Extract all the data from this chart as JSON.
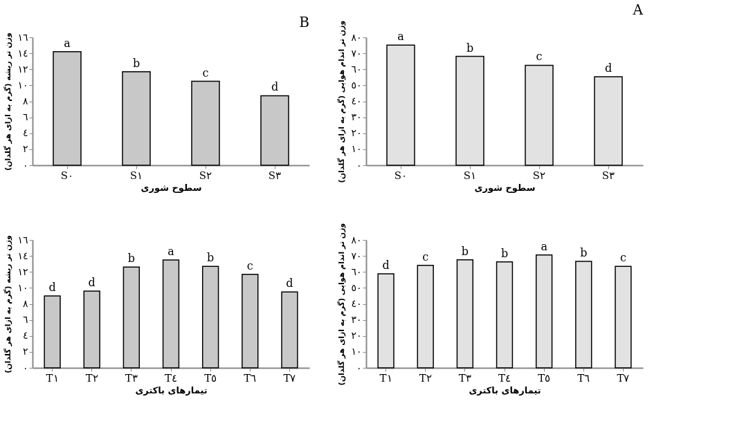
{
  "chart_data": [
    {
      "type": "bar",
      "title": "B",
      "xlabel": "سطوح شوری",
      "ylabel": "وزن تر ریشه (گرم به ازای هر گلدان)",
      "categories": [
        "S٠",
        "S١",
        "S٢",
        "S٣"
      ],
      "values": [
        14.2,
        11.7,
        10.5,
        8.7
      ],
      "value_labels": [
        "a",
        "b",
        "c",
        "d"
      ],
      "color": "#c8c8c8",
      "ylim": [
        0,
        16
      ],
      "yticks": [
        {
          "value": 0,
          "label": "٠"
        },
        {
          "value": 2,
          "label": "٢"
        },
        {
          "value": 4,
          "label": "٤"
        },
        {
          "value": 6,
          "label": "٦"
        },
        {
          "value": 8,
          "label": "٨"
        },
        {
          "value": 10,
          "label": "١٠"
        },
        {
          "value": 12,
          "label": "١٢"
        },
        {
          "value": 14,
          "label": "١٤"
        },
        {
          "value": 16,
          "label": "١٦"
        }
      ],
      "grid": false
    },
    {
      "type": "bar",
      "title": "A",
      "xlabel": "سطوح شوری",
      "ylabel": "وزن تر اندام هوایی (گرم به ازای هر گلدان)",
      "categories": [
        "S٠",
        "S١",
        "S٢",
        "S٣"
      ],
      "values": [
        75.1,
        68.1,
        62.5,
        55.3
      ],
      "value_labels": [
        "a",
        "b",
        "c",
        "d"
      ],
      "color": "#e2e2e2",
      "ylim": [
        0,
        80
      ],
      "yticks": [
        {
          "value": 0,
          "label": "٠"
        },
        {
          "value": 10,
          "label": "١٠"
        },
        {
          "value": 20,
          "label": "٢٠"
        },
        {
          "value": 30,
          "label": "٣٠"
        },
        {
          "value": 40,
          "label": "٤٠"
        },
        {
          "value": 50,
          "label": "٥٠"
        },
        {
          "value": 60,
          "label": "٦٠"
        },
        {
          "value": 70,
          "label": "٧٠"
        },
        {
          "value": 80,
          "label": "٨٠"
        }
      ],
      "grid": false
    },
    {
      "type": "bar",
      "xlabel": "تیمارهای باکتری",
      "ylabel": "وزن تر ریشه (گرم به ازای هر گلدان)",
      "categories": [
        "T١",
        "T٢",
        "T٣",
        "T٤",
        "T٥",
        "T٦",
        "T٧"
      ],
      "values": [
        9.0,
        9.6,
        12.6,
        13.5,
        12.7,
        11.7,
        9.5
      ],
      "value_labels": [
        "d",
        "d",
        "b",
        "a",
        "b",
        "c",
        "d"
      ],
      "color": "#c8c8c8",
      "ylim": [
        0,
        16
      ],
      "yticks": [
        {
          "value": 0,
          "label": "٠"
        },
        {
          "value": 2,
          "label": "٢"
        },
        {
          "value": 4,
          "label": "٤"
        },
        {
          "value": 6,
          "label": "٦"
        },
        {
          "value": 8,
          "label": "٨"
        },
        {
          "value": 10,
          "label": "١٠"
        },
        {
          "value": 12,
          "label": "١٢"
        },
        {
          "value": 14,
          "label": "١٤"
        },
        {
          "value": 16,
          "label": "١٦"
        }
      ],
      "grid": false
    },
    {
      "type": "bar",
      "xlabel": "تیمارهای باکتری",
      "ylabel": "وزن تر اندام هوایی (گرم به ازای هر گلدان)",
      "categories": [
        "T١",
        "T٢",
        "T٣",
        "T٤",
        "T٥",
        "T٦",
        "T٧"
      ],
      "values": [
        58.8,
        64.1,
        67.6,
        66.3,
        70.6,
        66.6,
        63.5
      ],
      "value_labels": [
        "d",
        "c",
        "b",
        "b",
        "a",
        "b",
        "c"
      ],
      "color": "#e2e2e2",
      "ylim": [
        0,
        80
      ],
      "yticks": [
        {
          "value": 0,
          "label": "٠"
        },
        {
          "value": 10,
          "label": "١٠"
        },
        {
          "value": 20,
          "label": "٢٠"
        },
        {
          "value": 30,
          "label": "٣٠"
        },
        {
          "value": 40,
          "label": "٤٠"
        },
        {
          "value": 50,
          "label": "٥٠"
        },
        {
          "value": 60,
          "label": "٦٠"
        },
        {
          "value": 70,
          "label": "٧٠"
        },
        {
          "value": 80,
          "label": "٨٠"
        }
      ],
      "grid": false
    }
  ]
}
